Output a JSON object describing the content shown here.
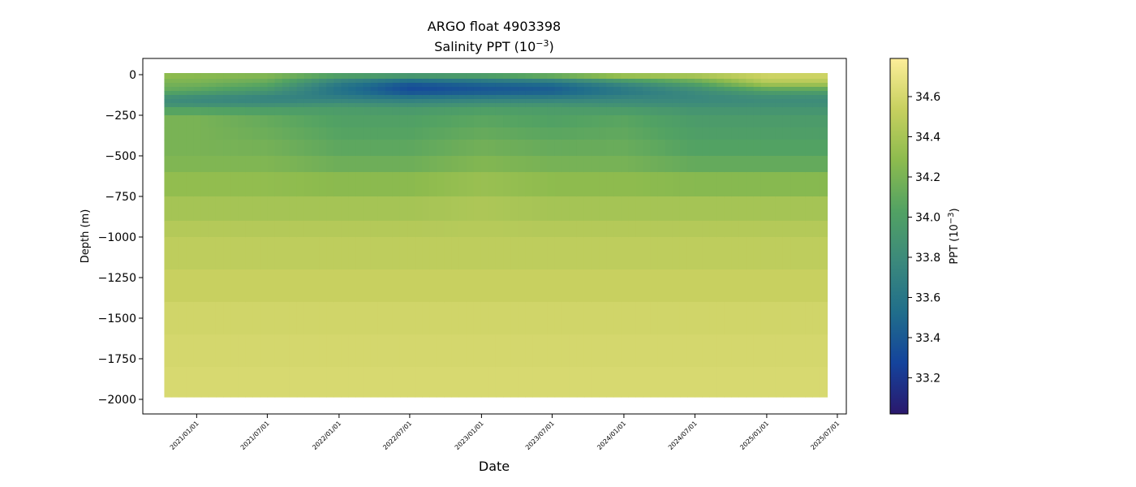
{
  "chart_data": {
    "type": "heatmap",
    "title": "ARGO float 4903398",
    "subtitle": {
      "base": "Salinity PPT (10",
      "exp": "−3",
      "close": ")"
    },
    "xlabel": "Date",
    "ylabel": "Depth (m)",
    "x_range": [
      "2020-08-16",
      "2025-07-24"
    ],
    "data_x_range": [
      "2020-10-10",
      "2025-06-05"
    ],
    "ylim": [
      -2090,
      100
    ],
    "x_ticks": [
      "2021/01/01",
      "2021/07/01",
      "2022/01/01",
      "2022/07/01",
      "2023/01/01",
      "2023/07/01",
      "2024/01/01",
      "2024/07/01",
      "2025/01/01",
      "2025/07/01"
    ],
    "y_ticks": [
      0,
      -250,
      -500,
      -750,
      -1000,
      -1250,
      -1500,
      -1750,
      -2000
    ],
    "colorbar": {
      "label": {
        "base": "PPT (10",
        "exp": "−3",
        "close": ")"
      },
      "range": [
        33.02,
        34.79
      ],
      "ticks": [
        33.2,
        33.4,
        33.6,
        33.8,
        34.0,
        34.2,
        34.4,
        34.6
      ],
      "colormap": "haline",
      "colors": [
        "#2a186c",
        "#14439c",
        "#206e8b",
        "#3b897c",
        "#52a263",
        "#8dbb4e",
        "#c7d05f",
        "#fdee99"
      ]
    },
    "depth_levels": [
      0,
      -50,
      -100,
      -150,
      -200,
      -250,
      -500,
      -750,
      -1000,
      -1500,
      -2000
    ],
    "profile_dates": [
      "2020-10-10",
      "2021-01-01",
      "2021-07-01",
      "2022-01-01",
      "2022-07-01",
      "2023-01-01",
      "2023-07-01",
      "2024-01-01",
      "2024-07-01",
      "2025-01-01",
      "2025-06-05"
    ],
    "salinity": [
      [
        34.3,
        34.28,
        34.25,
        34.05,
        34.0,
        34.05,
        34.2,
        34.42,
        34.45,
        34.58,
        34.58
      ],
      [
        34.2,
        34.2,
        34.1,
        33.65,
        33.4,
        33.5,
        33.55,
        33.8,
        34.05,
        34.45,
        34.45
      ],
      [
        34.1,
        34.05,
        33.9,
        33.55,
        33.3,
        33.35,
        33.4,
        33.6,
        33.8,
        34.0,
        34.0
      ],
      [
        33.8,
        33.75,
        33.7,
        33.7,
        33.65,
        33.7,
        33.7,
        33.75,
        33.75,
        33.8,
        33.8
      ],
      [
        33.9,
        33.9,
        33.9,
        33.95,
        33.9,
        33.95,
        33.95,
        33.9,
        33.85,
        33.85,
        33.85
      ],
      [
        34.2,
        34.2,
        34.1,
        34.0,
        34.0,
        34.05,
        34.0,
        34.05,
        33.95,
        33.95,
        33.95
      ],
      [
        34.2,
        34.2,
        34.2,
        34.1,
        34.1,
        34.2,
        34.15,
        34.15,
        34.05,
        34.05,
        34.05
      ],
      [
        34.35,
        34.35,
        34.35,
        34.35,
        34.35,
        34.4,
        34.35,
        34.35,
        34.35,
        34.35,
        34.35
      ],
      [
        34.48,
        34.48,
        34.48,
        34.48,
        34.48,
        34.48,
        34.48,
        34.48,
        34.48,
        34.48,
        34.48
      ],
      [
        34.58,
        34.58,
        34.58,
        34.58,
        34.58,
        34.58,
        34.58,
        34.58,
        34.58,
        34.58,
        34.58
      ],
      [
        34.62,
        34.62,
        34.62,
        34.62,
        34.62,
        34.62,
        34.62,
        34.62,
        34.62,
        34.62,
        34.62
      ]
    ]
  }
}
